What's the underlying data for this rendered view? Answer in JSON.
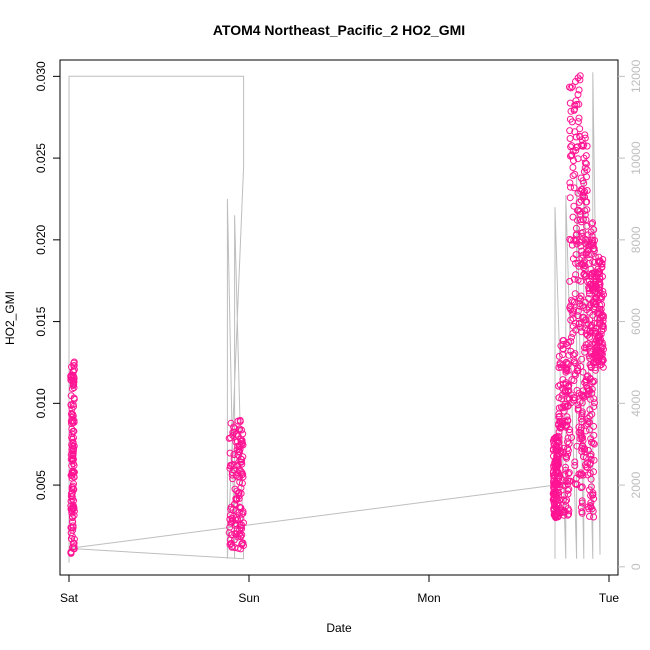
{
  "chart_data": {
    "type": "scatter",
    "title": "ATOM4 Northeast_Pacific_2 HO2_GMI",
    "xlabel": "Date",
    "ylabel": "HO2_GMI",
    "x_ticks": [
      "Sat",
      "Sun",
      "Mon",
      "Tue"
    ],
    "xlim_days": [
      -0.05,
      3.05
    ],
    "ylim": [
      -0.0005,
      0.031
    ],
    "y_ticks": [
      0.005,
      0.01,
      0.015,
      0.02,
      0.025,
      0.03
    ],
    "y_tick_labels": [
      "0.005",
      "0.010",
      "0.015",
      "0.020",
      "0.025",
      "0.030"
    ],
    "right_axis": {
      "color": "#bebebe",
      "ylim": [
        -200,
        12400
      ],
      "ticks": [
        0,
        2000,
        4000,
        6000,
        8000,
        10000,
        12000
      ],
      "tick_labels": [
        "0",
        "2000",
        "4000",
        "6000",
        "8000",
        "10000",
        "12000"
      ]
    },
    "series": [
      {
        "color": "#ff1493",
        "marker": "open-circle",
        "segments": [
          {
            "x0": 0.01,
            "x1": 0.03,
            "ymin": 0.0008,
            "ymax": 0.0126
          },
          {
            "x0": 0.89,
            "x1": 0.97,
            "ymin": 0.001,
            "ymax": 0.0092
          },
          {
            "x0": 2.69,
            "x1": 2.72,
            "ymin": 0.003,
            "ymax": 0.008
          },
          {
            "x0": 2.72,
            "x1": 2.78,
            "ymin": 0.003,
            "ymax": 0.014
          },
          {
            "x0": 2.78,
            "x1": 2.84,
            "ymin": 0.005,
            "ymax": 0.0302
          },
          {
            "x0": 2.84,
            "x1": 2.88,
            "ymin": 0.003,
            "ymax": 0.0267
          },
          {
            "x0": 2.88,
            "x1": 2.92,
            "ymin": 0.003,
            "ymax": 0.0214
          },
          {
            "x0": 2.92,
            "x1": 2.97,
            "ymin": 0.012,
            "ymax": 0.019
          }
        ]
      },
      {
        "color": "#bebebe",
        "marker": "line",
        "points": [
          [
            0.0,
            100
          ],
          [
            0.0,
            12000
          ],
          [
            0.97,
            12000
          ],
          [
            0.97,
            9800
          ],
          [
            0.88,
            200
          ],
          [
            0.88,
            9000
          ],
          [
            0.92,
            200
          ],
          [
            0.92,
            8600
          ],
          [
            0.97,
            200
          ],
          [
            0.0,
            450
          ],
          [
            2.7,
            2000
          ],
          [
            2.7,
            200
          ],
          [
            2.7,
            8800
          ],
          [
            2.76,
            200
          ],
          [
            2.76,
            9100
          ],
          [
            2.82,
            200
          ],
          [
            2.82,
            9600
          ],
          [
            2.86,
            200
          ],
          [
            2.86,
            9800
          ],
          [
            2.91,
            200
          ],
          [
            2.91,
            12100
          ],
          [
            2.95,
            300
          ],
          [
            2.95,
            6000
          ]
        ]
      }
    ],
    "grid": false
  }
}
